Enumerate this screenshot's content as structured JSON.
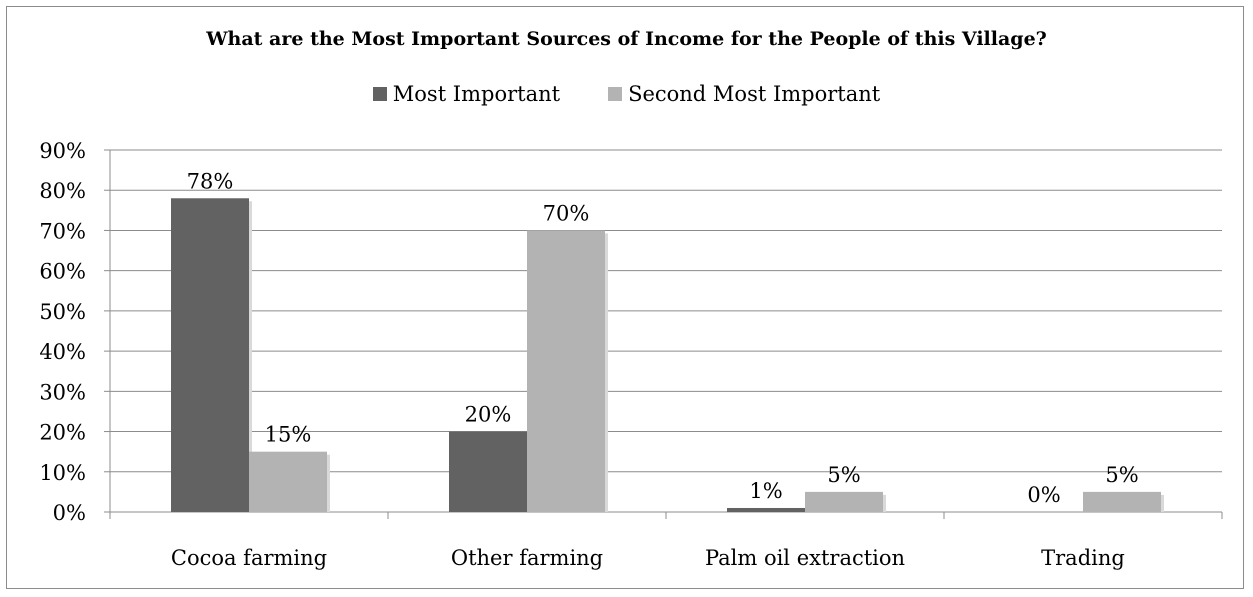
{
  "chart_data": {
    "type": "bar",
    "title": "What are the Most Important Sources of Income for the People of this Village?",
    "categories": [
      "Cocoa farming",
      "Other farming",
      "Palm oil extraction",
      "Trading"
    ],
    "series": [
      {
        "name": "Most Important",
        "values": [
          78,
          20,
          1,
          0
        ],
        "labels": [
          "78%",
          "20%",
          "1%",
          "0%"
        ],
        "color": "#626262"
      },
      {
        "name": "Second Most Important",
        "values": [
          15,
          70,
          5,
          5
        ],
        "labels": [
          "15%",
          "70%",
          "5%",
          "5%"
        ],
        "color": "#b3b3b3"
      }
    ],
    "ylim": [
      0,
      90
    ],
    "yticks": [
      "0%",
      "10%",
      "20%",
      "30%",
      "40%",
      "50%",
      "60%",
      "70%",
      "80%",
      "90%"
    ],
    "grid": true,
    "legend_position": "top",
    "xlabel": "",
    "ylabel": ""
  }
}
